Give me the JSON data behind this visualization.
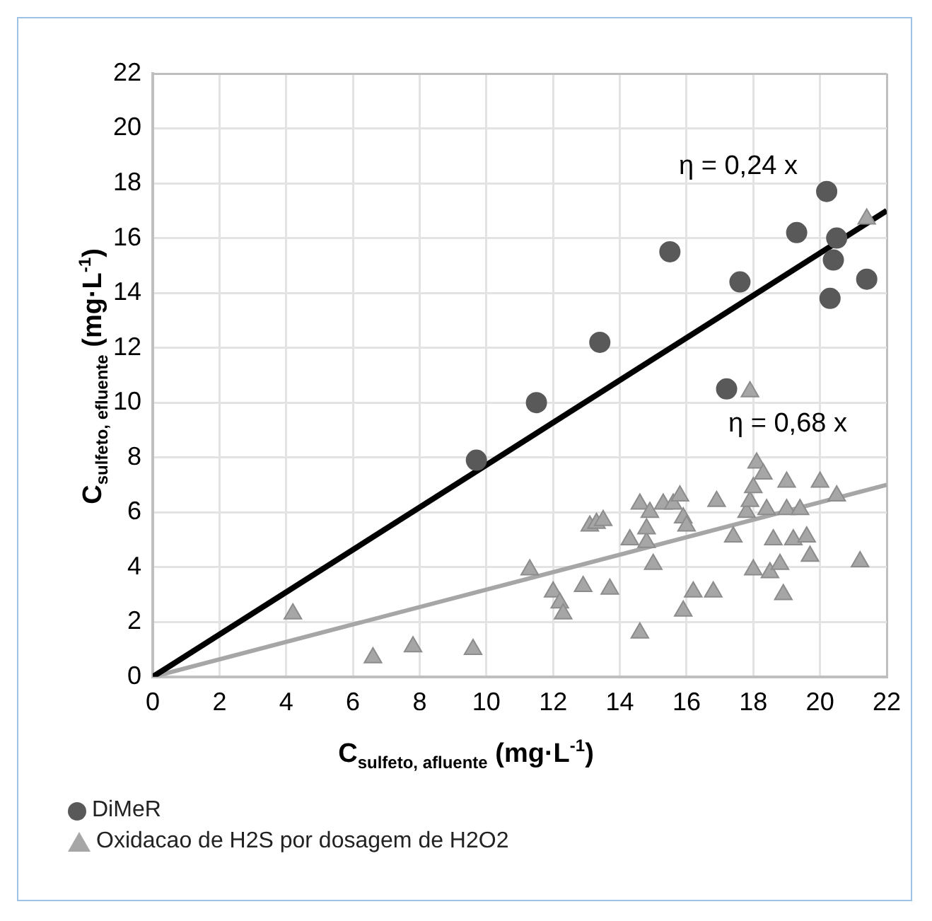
{
  "chart_data": {
    "type": "scatter",
    "xlabel": "C$_{sulfeto, afluente}$ (mg·L$^{-1}$)",
    "ylabel": "C$_{sulfeto, efluente}$ (mg·L$^{-1}$)",
    "xlim": [
      0,
      22
    ],
    "xticks": [
      0,
      2,
      4,
      6,
      8,
      10,
      12,
      14,
      16,
      18,
      20,
      22
    ],
    "ylim": [
      0,
      22
    ],
    "yticks": [
      0,
      2,
      4,
      6,
      8,
      10,
      12,
      14,
      16,
      18,
      20,
      22
    ],
    "grid": true,
    "legend": "bottom left",
    "series": [
      {
        "name": "DiMeR",
        "color": "#595959",
        "marker": "circle",
        "x": [
          9.7,
          11.5,
          13.4,
          15.5,
          17.2,
          17.6,
          19.3,
          20.2,
          20.5,
          20.4,
          20.3,
          21.4
        ],
        "values": [
          7.9,
          10.0,
          12.2,
          15.5,
          10.5,
          14.4,
          16.2,
          17.7,
          16.0,
          15.2,
          13.8,
          14.5
        ]
      },
      {
        "name": "Oxidacao de H2S por dosagem de H2O2",
        "color": "#a6a6a6",
        "marker": "triangle",
        "x": [
          4.2,
          6.6,
          7.8,
          9.6,
          11.3,
          12.0,
          12.2,
          12.3,
          12.9,
          13.7,
          13.1,
          13.3,
          13.5,
          14.3,
          14.6,
          14.6,
          14.8,
          14.8,
          14.9,
          15.0,
          15.3,
          15.6,
          15.8,
          15.9,
          15.9,
          16.0,
          16.2,
          16.8,
          16.9,
          17.4,
          17.8,
          17.9,
          18.0,
          18.1,
          18.3,
          18.0,
          18.5,
          18.8,
          18.4,
          18.6,
          18.9,
          19.0,
          19.0,
          19.2,
          19.4,
          19.6,
          19.7,
          20.0,
          20.5,
          21.2,
          17.9,
          21.4
        ],
        "values": [
          2.3,
          0.7,
          1.1,
          1.0,
          3.9,
          3.1,
          2.7,
          2.3,
          3.3,
          3.2,
          5.5,
          5.6,
          5.7,
          5.0,
          1.6,
          6.3,
          4.9,
          5.4,
          6.0,
          4.1,
          6.3,
          6.3,
          6.6,
          2.4,
          5.8,
          5.5,
          3.1,
          3.1,
          6.4,
          5.1,
          6.0,
          6.4,
          6.9,
          7.8,
          7.4,
          3.9,
          3.8,
          4.1,
          6.1,
          5.0,
          3.0,
          7.1,
          6.1,
          5.0,
          6.1,
          5.1,
          4.4,
          7.1,
          6.6,
          4.2,
          10.4,
          16.7
        ]
      },
      {
        "type": "line",
        "color": "#000000",
        "marker": "none",
        "x": [
          0,
          22
        ],
        "values": [
          0,
          17
        ]
      },
      {
        "type": "line",
        "color": "#a6a6a6",
        "marker": "none",
        "x": [
          0,
          22
        ],
        "values": [
          0,
          7
        ]
      }
    ],
    "annotations": [
      "η = 0,24 x",
      "η = 0,68 x"
    ]
  }
}
